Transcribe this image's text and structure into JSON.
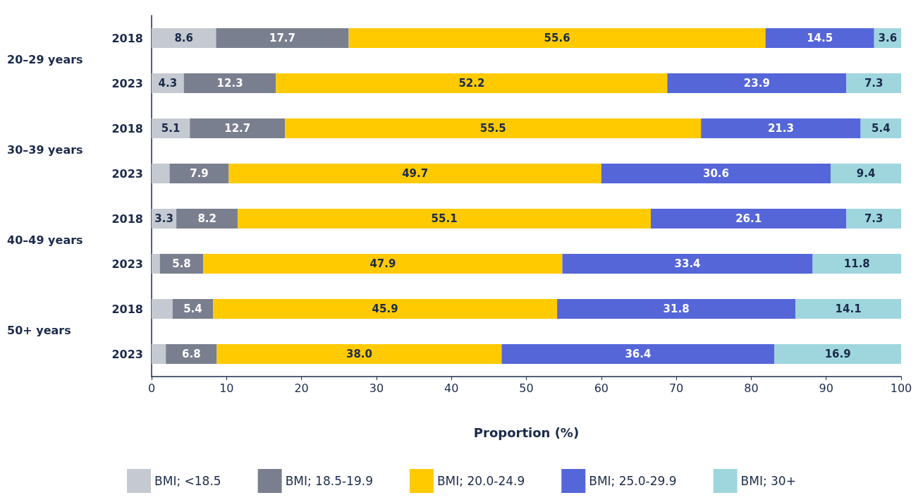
{
  "chart_data": {
    "type": "bar",
    "orientation": "horizontal",
    "stacked": true,
    "xlabel": "Proportion (%)",
    "categories": [
      "2018",
      "2023",
      "2018",
      "2023",
      "2018",
      "2023",
      "2018",
      "2023"
    ],
    "annotations": [
      "20–29 years",
      "30–39 years",
      "40–49 years",
      "50+ years"
    ],
    "series": [
      {
        "name": "BMI; <18.5",
        "color": "#c5c9d1",
        "values": [
          8.6,
          4.3,
          5.1,
          2.4,
          3.3,
          1.1,
          2.8,
          1.9
        ],
        "value_labels": [
          "8.6",
          "4.3",
          "5.1",
          null,
          "3.3",
          null,
          null,
          null
        ]
      },
      {
        "name": "BMI; 18.5-19.9",
        "color": "#7a7f8f",
        "values": [
          17.7,
          12.3,
          12.7,
          7.9,
          8.2,
          5.8,
          5.4,
          6.8
        ],
        "value_labels": [
          "17.7",
          "12.3",
          "12.7",
          "7.9",
          "8.2",
          "5.8",
          "5.4",
          "6.8"
        ]
      },
      {
        "name": "BMI; 20.0-24.9",
        "color": "#ffca00",
        "values": [
          55.6,
          52.2,
          55.5,
          49.7,
          55.1,
          47.9,
          45.9,
          38.0
        ],
        "value_labels": [
          "55.6",
          "52.2",
          "55.5",
          "49.7",
          "55.1",
          "47.9",
          "45.9",
          "38.0"
        ]
      },
      {
        "name": "BMI; 25.0-29.9",
        "color": "#5566d9",
        "values": [
          14.5,
          23.9,
          21.3,
          30.6,
          26.1,
          33.4,
          31.8,
          36.4
        ],
        "value_labels": [
          "14.5",
          "23.9",
          "21.3",
          "30.6",
          "26.1",
          "33.4",
          "31.8",
          "36.4"
        ]
      },
      {
        "name": "BMI; 30+",
        "color": "#9fd6de",
        "values": [
          3.6,
          7.3,
          5.4,
          9.4,
          7.3,
          11.8,
          14.1,
          16.9
        ],
        "value_labels": [
          "3.6",
          "7.3",
          "5.4",
          "9.4",
          "7.3",
          "11.8",
          "14.1",
          "16.9"
        ]
      }
    ],
    "xlim": [
      0,
      100
    ],
    "xticks": [
      0,
      10,
      20,
      30,
      40,
      50,
      60,
      70,
      80,
      90,
      100
    ],
    "grid": false,
    "legend": "bottom"
  }
}
